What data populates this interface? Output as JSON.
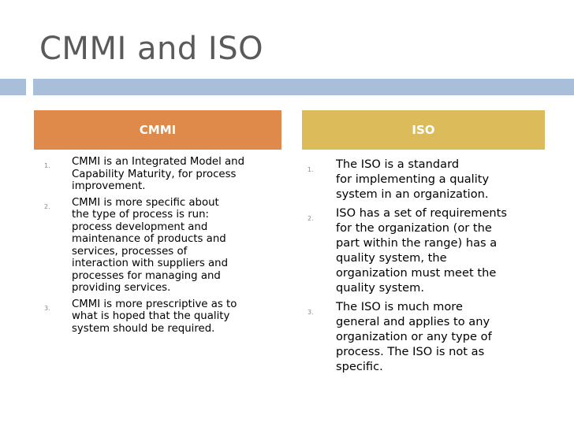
{
  "slide": {
    "title": "CMMI and ISO"
  },
  "columns": [
    {
      "header": "CMMI",
      "items": [
        {
          "number": "1.",
          "lines": [
            "CMMI is an Integrated Model and",
            "Capability Maturity, for process",
            "improvement."
          ]
        },
        {
          "number": "2.",
          "lines": [
            "CMMI is more specific about",
            "the type of process is run:",
            "process development and",
            "maintenance of products and",
            "services, processes of",
            "interaction with suppliers and",
            "processes for managing and",
            "providing services."
          ]
        },
        {
          "number": "3.",
          "lines": [
            "CMMI is more prescriptive as to",
            "what is hoped that the quality",
            "system should be required."
          ]
        }
      ]
    },
    {
      "header": "ISO",
      "items": [
        {
          "number": "1.",
          "lines": [
            "The ISO is a standard",
            "for implementing a quality",
            "system in an organization."
          ]
        },
        {
          "number": "2.",
          "lines": [
            "ISO has a set of requirements",
            "for the organization (or the",
            "part within the range) has a",
            "quality system, the",
            "organization must meet the",
            "quality system."
          ]
        },
        {
          "number": "3.",
          "lines": [
            "The ISO is much more",
            "general and applies to any",
            "organization or any type of",
            "process. The ISO is not as",
            "specific."
          ]
        }
      ]
    }
  ],
  "colors": {
    "title_text": "#5a5a5a",
    "title_bar": "#a9bfd9",
    "cmmi_header": "#df8a4a",
    "iso_header": "#dcbb5a",
    "number_text": "#8a8a8a"
  }
}
